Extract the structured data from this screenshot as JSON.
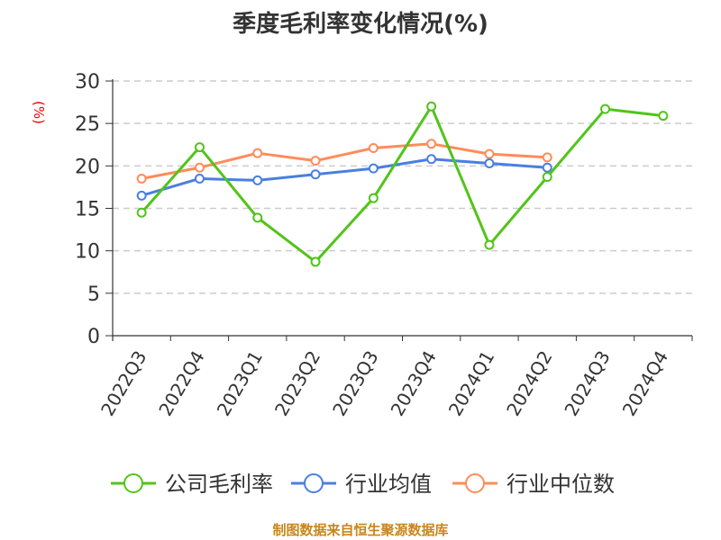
{
  "title": "季度毛利率变化情况(%)",
  "unit_label": "(%)",
  "footer": "制图数据来自恒生聚源数据库",
  "colors": {
    "company": "#52c41a",
    "industry_avg": "#4a7fe0",
    "industry_median": "#ff8c5a",
    "axis_text": "#333333",
    "unit": "#e60000",
    "footer": "#c8861a"
  },
  "legend": [
    {
      "label": "公司毛利率",
      "color": "#52c41a"
    },
    {
      "label": "行业均值",
      "color": "#4a7fe0"
    },
    {
      "label": "行业中位数",
      "color": "#ff8c5a"
    }
  ],
  "chart_data": {
    "type": "line",
    "title": "季度毛利率变化情况(%)",
    "xlabel": "",
    "ylabel": "(%)",
    "ylim": [
      0,
      30
    ],
    "yticks": [
      0,
      5,
      10,
      15,
      20,
      25,
      30
    ],
    "grid": true,
    "legend_position": "bottom",
    "categories": [
      "2022Q3",
      "2022Q4",
      "2023Q1",
      "2023Q2",
      "2023Q3",
      "2023Q4",
      "2024Q1",
      "2024Q2",
      "2024Q3",
      "2024Q4"
    ],
    "series": [
      {
        "name": "公司毛利率",
        "values": [
          14.5,
          22.2,
          13.9,
          8.7,
          16.2,
          27.0,
          10.7,
          18.7,
          26.7,
          25.9
        ]
      },
      {
        "name": "行业均值",
        "values": [
          16.5,
          18.5,
          18.3,
          19.0,
          19.7,
          20.8,
          20.3,
          19.8,
          null,
          null
        ]
      },
      {
        "name": "行业中位数",
        "values": [
          18.5,
          19.8,
          21.5,
          20.6,
          22.1,
          22.6,
          21.4,
          21.0,
          null,
          null
        ]
      }
    ]
  }
}
